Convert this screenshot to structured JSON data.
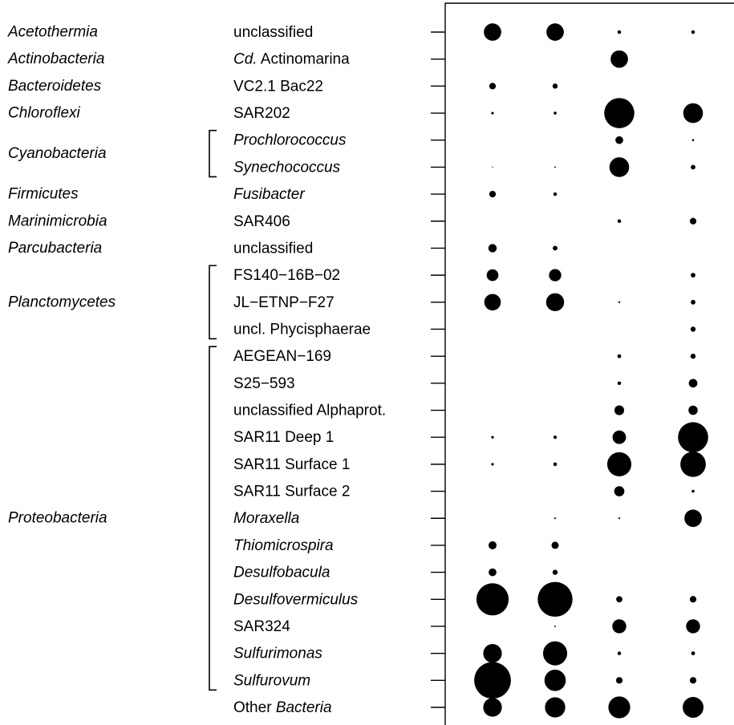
{
  "chart_data": {
    "type": "bubble",
    "title": "",
    "xlabel": "",
    "ylabel": "",
    "grid": false,
    "columns": 4,
    "phyla": [
      {
        "name": "Acetothermia",
        "rows": [
          0
        ]
      },
      {
        "name": "Actinobacteria",
        "rows": [
          1
        ]
      },
      {
        "name": "Bacteroidetes",
        "rows": [
          2
        ]
      },
      {
        "name": "Chloroflexi",
        "rows": [
          3
        ]
      },
      {
        "name": "Cyanobacteria",
        "rows": [
          4,
          5
        ]
      },
      {
        "name": "Firmicutes",
        "rows": [
          6
        ]
      },
      {
        "name": "Marinimicrobia",
        "rows": [
          7
        ]
      },
      {
        "name": "Parcubacteria",
        "rows": [
          8
        ]
      },
      {
        "name": "Planctomycetes",
        "rows": [
          9,
          10,
          11
        ]
      },
      {
        "name": "Proteobacteria",
        "rows": [
          12,
          13,
          14,
          15,
          16,
          17,
          18,
          19,
          20,
          21,
          22,
          23,
          24
        ]
      }
    ],
    "taxa": [
      {
        "parts": [
          {
            "t": "unclassified",
            "i": false
          }
        ],
        "values": [
          7,
          7,
          0.3,
          0.3
        ]
      },
      {
        "parts": [
          {
            "t": "Cd.",
            "i": true
          },
          {
            "t": " Actinomarina",
            "i": false
          }
        ],
        "values": [
          0,
          0,
          7,
          0
        ]
      },
      {
        "parts": [
          {
            "t": "VC2.1 Bac22",
            "i": false
          }
        ],
        "values": [
          1,
          0.6,
          0,
          0
        ]
      },
      {
        "parts": [
          {
            "t": "SAR202",
            "i": false
          }
        ],
        "values": [
          0.15,
          0.2,
          21,
          9
        ]
      },
      {
        "parts": [
          {
            "t": "Prochlorococcus",
            "i": true
          }
        ],
        "values": [
          0,
          0,
          1.4,
          0.1
        ]
      },
      {
        "parts": [
          {
            "t": "Synechococcus",
            "i": true
          }
        ],
        "values": [
          0.03,
          0.05,
          9,
          0.5
        ]
      },
      {
        "parts": [
          {
            "t": "Fusibacter",
            "i": true
          }
        ],
        "values": [
          1,
          0.3,
          0,
          0
        ]
      },
      {
        "parts": [
          {
            "t": "SAR406",
            "i": false
          }
        ],
        "values": [
          0,
          0,
          0.3,
          1
        ]
      },
      {
        "parts": [
          {
            "t": "unclassified",
            "i": false
          }
        ],
        "values": [
          1.6,
          0.5,
          0,
          0
        ]
      },
      {
        "parts": [
          {
            "t": "FS140−16B−02",
            "i": false
          }
        ],
        "values": [
          3.2,
          3.5,
          0,
          0.5
        ]
      },
      {
        "parts": [
          {
            "t": "JL−ETNP−F27",
            "i": false
          }
        ],
        "values": [
          6.3,
          7.5,
          0.08,
          0.5
        ]
      },
      {
        "parts": [
          {
            "t": "uncl. Phycisphaerae",
            "i": false
          }
        ],
        "values": [
          0,
          0,
          0,
          0.6
        ]
      },
      {
        "parts": [
          {
            "t": "AEGEAN−169",
            "i": false
          }
        ],
        "values": [
          0,
          0,
          0.35,
          0.6
        ]
      },
      {
        "parts": [
          {
            "t": "S25−593",
            "i": false
          }
        ],
        "values": [
          0,
          0,
          0.3,
          1.7
        ]
      },
      {
        "parts": [
          {
            "t": "unclassified Alphaprot.",
            "i": false
          }
        ],
        "values": [
          0,
          0,
          2.2,
          2
        ]
      },
      {
        "parts": [
          {
            "t": "SAR11 Deep 1",
            "i": false
          }
        ],
        "values": [
          0.15,
          0.25,
          4.2,
          21
        ]
      },
      {
        "parts": [
          {
            "t": "SAR11 Surface 1",
            "i": false
          }
        ],
        "values": [
          0.15,
          0.3,
          13.5,
          15
        ]
      },
      {
        "parts": [
          {
            "t": "SAR11 Surface 2",
            "i": false
          }
        ],
        "values": [
          0,
          0,
          2.4,
          0.2
        ]
      },
      {
        "parts": [
          {
            "t": "Moraxella",
            "i": true
          }
        ],
        "values": [
          0,
          0.07,
          0.07,
          7
        ]
      },
      {
        "parts": [
          {
            "t": "Thiomicrospira",
            "i": true
          }
        ],
        "values": [
          1.5,
          1.2,
          0,
          0
        ]
      },
      {
        "parts": [
          {
            "t": "Desulfobacula",
            "i": true
          }
        ],
        "values": [
          1.4,
          0.6,
          0,
          0
        ]
      },
      {
        "parts": [
          {
            "t": "Desulfovermiculus",
            "i": true
          }
        ],
        "values": [
          24,
          28,
          0.9,
          1
        ]
      },
      {
        "parts": [
          {
            "t": "SAR324",
            "i": false
          }
        ],
        "values": [
          0,
          0.05,
          4.5,
          4.5
        ]
      },
      {
        "parts": [
          {
            "t": "Sulfurimonas",
            "i": true
          }
        ],
        "values": [
          8,
          13.5,
          0.3,
          0.35
        ]
      },
      {
        "parts": [
          {
            "t": "Sulfurovum",
            "i": true
          }
        ],
        "values": [
          31,
          10.5,
          1,
          1
        ]
      },
      {
        "parts": [
          {
            "t": "Other ",
            "i": false
          },
          {
            "t": "Bacteria",
            "i": true
          }
        ],
        "values": [
          8,
          9.5,
          11,
          10
        ]
      }
    ]
  }
}
